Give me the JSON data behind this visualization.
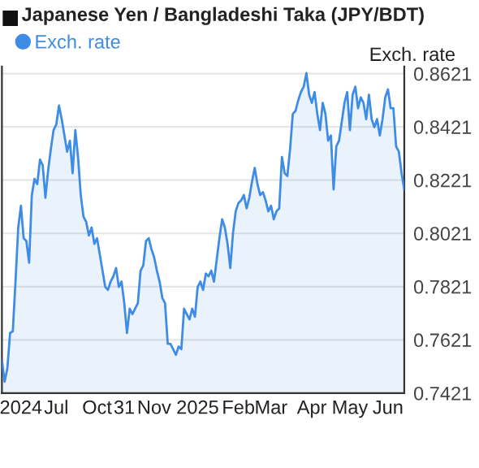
{
  "chart_data": {
    "type": "area",
    "title": "Japanese Yen / Bangladeshi Taka (JPY/BDT)",
    "ylabel": "Exch. rate",
    "legend": "top left",
    "grid": "y",
    "marker": "none",
    "ylim": [
      0.7421,
      0.8648
    ],
    "yticks": [
      0.7421,
      0.7621,
      0.7821,
      0.8021,
      0.8221,
      0.8421,
      0.8621
    ],
    "categories": [
      null,
      null,
      null,
      null,
      null,
      null,
      null,
      "2024",
      null,
      null,
      null,
      null,
      null,
      null,
      null,
      null,
      null,
      null,
      null,
      null,
      "Jul",
      null,
      null,
      null,
      null,
      null,
      null,
      null,
      null,
      null,
      null,
      null,
      null,
      null,
      null,
      "Oct",
      null,
      null,
      null,
      null,
      null,
      null,
      null,
      null,
      null,
      "31",
      null,
      null,
      null,
      null,
      null,
      null,
      null,
      null,
      null,
      null,
      "Nov",
      null,
      null,
      null,
      null,
      null,
      null,
      null,
      null,
      null,
      null,
      null,
      null,
      null,
      null,
      null,
      "2025",
      null,
      null,
      null,
      null,
      null,
      null,
      null,
      null,
      null,
      null,
      null,
      null,
      null,
      null,
      "Feb",
      null,
      null,
      null,
      null,
      null,
      null,
      null,
      null,
      null,
      null,
      null,
      "Mar",
      null,
      null,
      null,
      null,
      null,
      null,
      null,
      null,
      null,
      null,
      null,
      null,
      null,
      null,
      "Apr",
      null,
      null,
      null,
      null,
      null,
      null,
      null,
      null,
      null,
      null,
      null,
      null,
      null,
      "May",
      null,
      null,
      null,
      null,
      null,
      null,
      null,
      null,
      null,
      null,
      null,
      null,
      null,
      "Jun",
      null,
      null,
      null,
      null,
      null,
      null
    ],
    "series": [
      {
        "name": "Exch. rate",
        "color": "#3f8ce6",
        "values": [
          0.7545,
          0.7464,
          0.7514,
          0.7647,
          0.7653,
          0.784,
          0.8043,
          0.8125,
          0.8003,
          0.7992,
          0.7911,
          0.8165,
          0.8226,
          0.8206,
          0.8298,
          0.8277,
          0.8155,
          0.8257,
          0.8338,
          0.8409,
          0.843,
          0.8501,
          0.845,
          0.8389,
          0.8328,
          0.8369,
          0.8247,
          0.8409,
          0.8308,
          0.8165,
          0.8084,
          0.8064,
          0.8013,
          0.8043,
          0.7982,
          0.8003,
          0.7942,
          0.7881,
          0.782,
          0.7809,
          0.784,
          0.786,
          0.7891,
          0.782,
          0.784,
          0.7759,
          0.7647,
          0.7738,
          0.7718,
          0.7738,
          0.7759,
          0.7881,
          0.7901,
          0.7992,
          0.8003,
          0.7962,
          0.7931,
          0.7881,
          0.784,
          0.7779,
          0.7759,
          0.7606,
          0.7606,
          0.7586,
          0.7565,
          0.7596,
          0.7586,
          0.7738,
          0.7718,
          0.7698,
          0.7738,
          0.7708,
          0.782,
          0.784,
          0.7809,
          0.787,
          0.786,
          0.7881,
          0.784,
          0.7921,
          0.8003,
          0.8074,
          0.8043,
          0.7982,
          0.7891,
          0.8023,
          0.8104,
          0.8135,
          0.8145,
          0.8165,
          0.8115,
          0.8155,
          0.8216,
          0.8267,
          0.8206,
          0.8165,
          0.8176,
          0.8145,
          0.8104,
          0.8125,
          0.8074,
          0.8104,
          0.8115,
          0.8308,
          0.8247,
          0.8237,
          0.8338,
          0.847,
          0.8481,
          0.8521,
          0.8552,
          0.8572,
          0.8623,
          0.8542,
          0.8511,
          0.8552,
          0.847,
          0.8409,
          0.8511,
          0.847,
          0.8369,
          0.8389,
          0.8186,
          0.8348,
          0.8369,
          0.844,
          0.8511,
          0.8552,
          0.8409,
          0.8542,
          0.8572,
          0.8491,
          0.8532,
          0.8511,
          0.845,
          0.8542,
          0.845,
          0.842,
          0.845,
          0.8389,
          0.845,
          0.8532,
          0.8562,
          0.8491,
          0.8491,
          0.8348,
          0.8328,
          0.8247,
          0.8186
        ]
      }
    ]
  }
}
